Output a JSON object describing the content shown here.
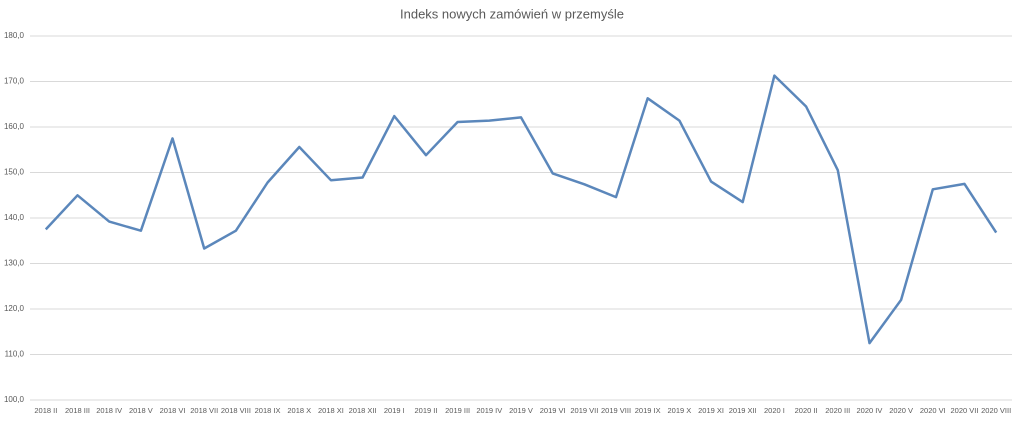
{
  "chart_data": {
    "type": "line",
    "title": "Indeks nowych zamówień w przemyśle",
    "categories": [
      "2018 II",
      "2018 III",
      "2018 IV",
      "2018 V",
      "2018 VI",
      "2018 VII",
      "2018 VIII",
      "2018 IX",
      "2018 X",
      "2018 XI",
      "2018 XII",
      "2019 I",
      "2019 II",
      "2019 III",
      "2019 IV",
      "2019 V",
      "2019 VI",
      "2019 VII",
      "2019 VIII",
      "2019 IX",
      "2019 X",
      "2019 XI",
      "2019 XII",
      "2020 I",
      "2020 II",
      "2020 III",
      "2020 IV",
      "2020 V",
      "2020 VI",
      "2020 VII",
      "2020 VIII"
    ],
    "values": [
      137.5,
      145,
      139.2,
      137.2,
      157.5,
      133.3,
      137.2,
      147.8,
      155.6,
      148.3,
      148.9,
      162.4,
      153.8,
      161.1,
      161.4,
      162.1,
      149.8,
      147.4,
      144.6,
      166.3,
      161.4,
      148,
      143.5,
      171.3,
      164.5,
      150.5,
      112.5,
      122,
      146.3,
      147.5,
      136.8
    ],
    "color": "#5b87bb",
    "ylim": [
      100,
      180
    ],
    "yticks": [
      {
        "value": 100,
        "label": "100,0"
      },
      {
        "value": 110,
        "label": "110,0"
      },
      {
        "value": 120,
        "label": "120,0"
      },
      {
        "value": 130,
        "label": "130,0"
      },
      {
        "value": 140,
        "label": "140,0"
      },
      {
        "value": 150,
        "label": "150,0"
      },
      {
        "value": 160,
        "label": "160,0"
      },
      {
        "value": 170,
        "label": "170,0"
      },
      {
        "value": 180,
        "label": "180,0"
      }
    ],
    "grid": true
  }
}
